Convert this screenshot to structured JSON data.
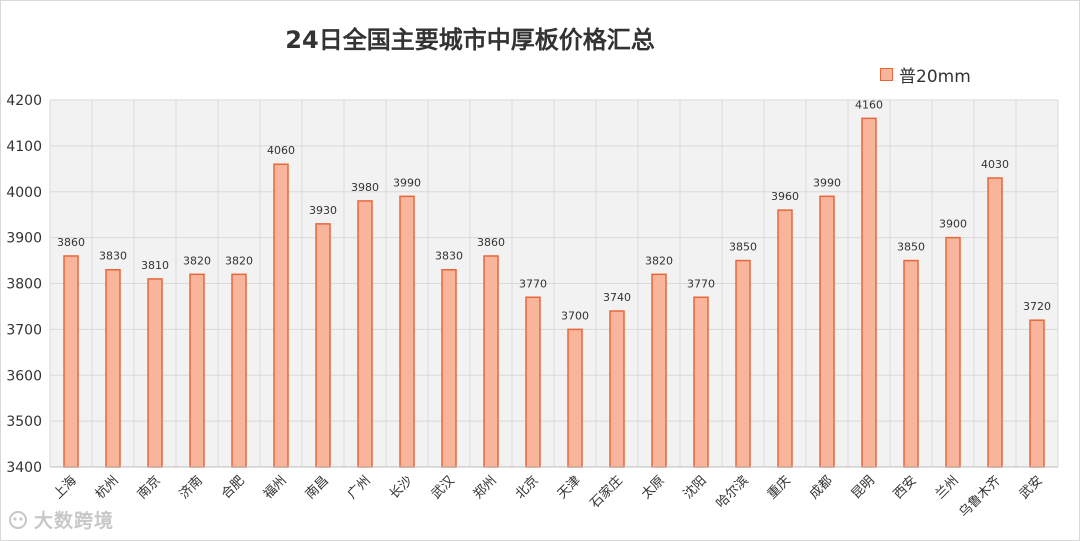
{
  "chart_data": {
    "type": "bar",
    "title": "24日全国主要城市中厚板价格汇总",
    "categories": [
      "上海",
      "杭州",
      "南京",
      "济南",
      "合肥",
      "福州",
      "南昌",
      "广州",
      "长沙",
      "武汉",
      "郑州",
      "北京",
      "天津",
      "石家庄",
      "太原",
      "沈阳",
      "哈尔滨",
      "重庆",
      "成都",
      "昆明",
      "西安",
      "兰州",
      "乌鲁木齐",
      "武安"
    ],
    "series": [
      {
        "name": "普20mm",
        "values": [
          3860,
          3830,
          3810,
          3820,
          3820,
          4060,
          3930,
          3980,
          3990,
          3830,
          3860,
          3770,
          3700,
          3740,
          3820,
          3770,
          3850,
          3960,
          3990,
          4160,
          3850,
          3900,
          4030,
          3720
        ]
      }
    ],
    "ylim": [
      3400,
      4200
    ],
    "yticks": [
      3400,
      3500,
      3600,
      3700,
      3800,
      3900,
      4000,
      4100,
      4200
    ],
    "grid": true,
    "legend_position": "top-right",
    "colors": {
      "bar_fill": "#f9b59b",
      "bar_stroke": "#e8673a",
      "grid": "#d9d9d9",
      "plot_bg": "#f2f2f2"
    }
  },
  "watermark": {
    "text": "大数跨境"
  }
}
